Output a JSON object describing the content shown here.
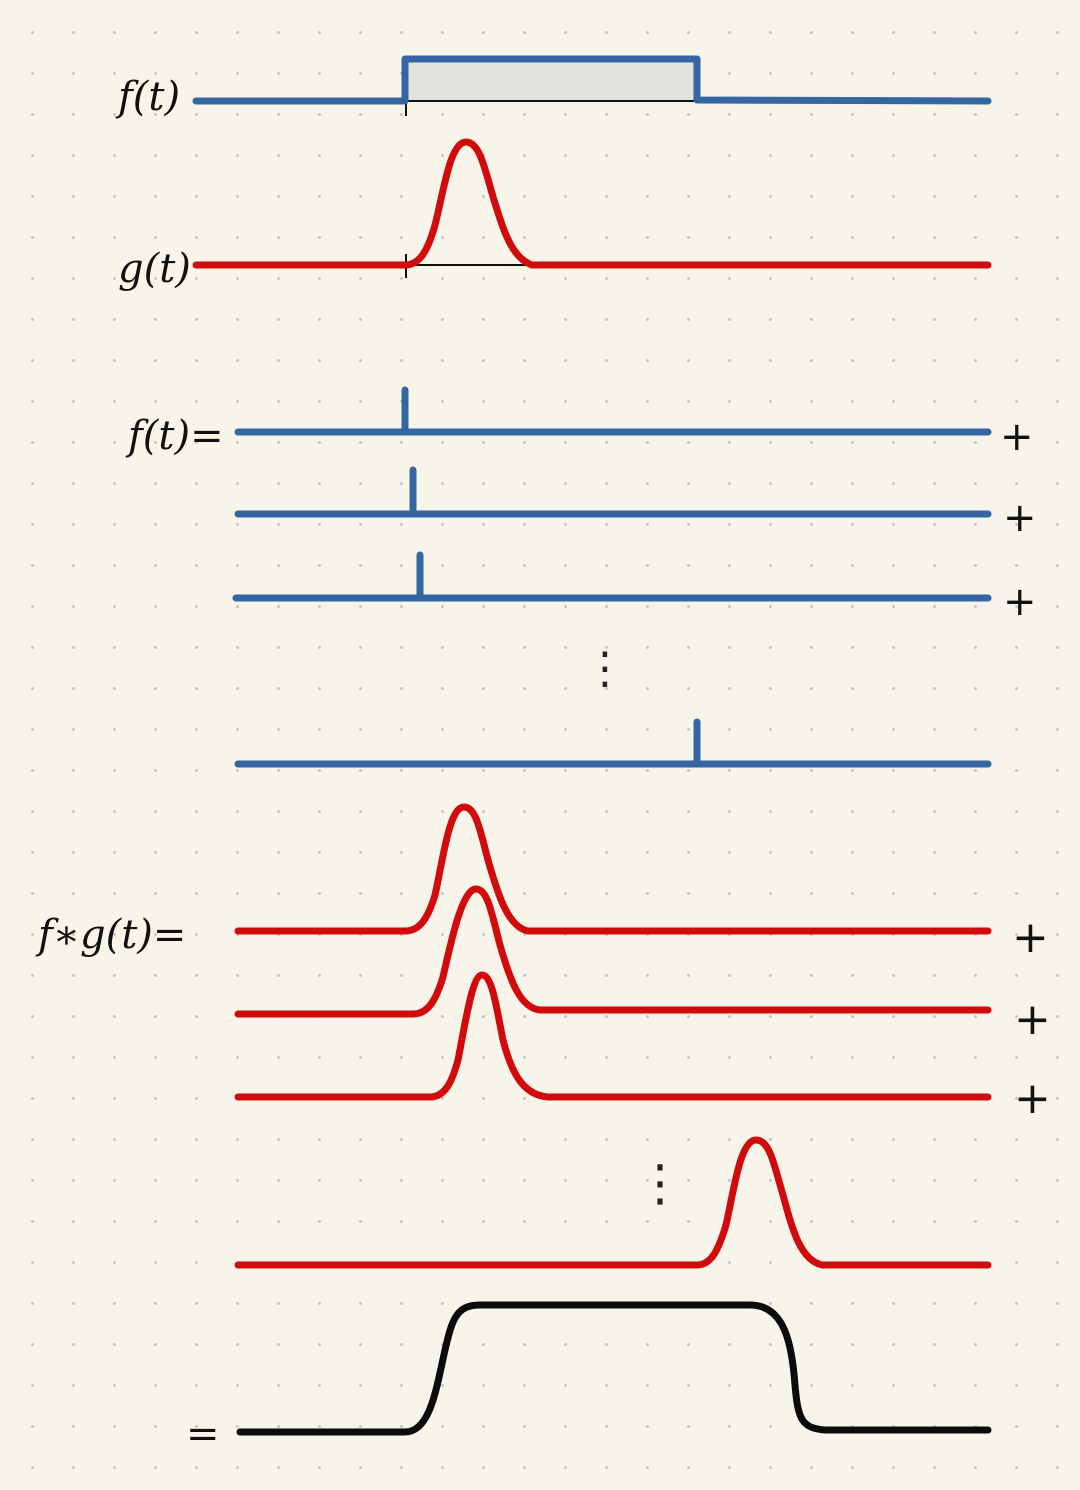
{
  "labels": {
    "f": "f(t)",
    "g": "g(t)",
    "f_decomp": "f(t)=",
    "conv": "f∗g(t)=",
    "equals": "="
  },
  "plus_sign": "+",
  "ellipsis_glyph": "⋮",
  "colors": {
    "f_signal": "#3665a3",
    "g_signal": "#d10b0b",
    "result": "#0c0c0c",
    "rect_fill": "#e1e4de",
    "background": "#f7f5ea"
  }
}
